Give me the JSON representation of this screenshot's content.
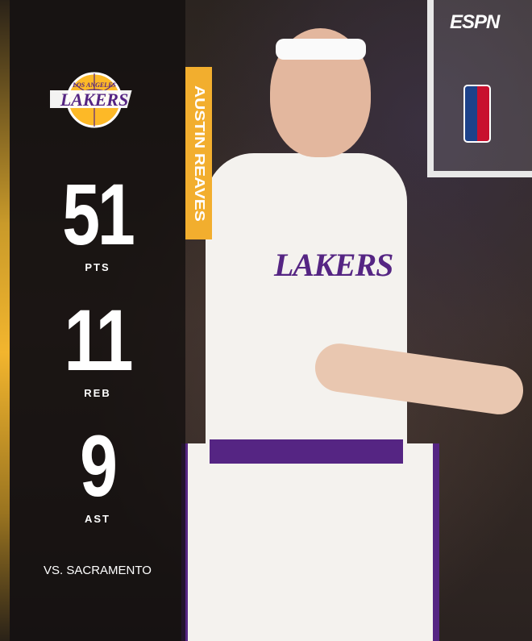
{
  "brand": "ESPN",
  "team_logo": {
    "text_top": "LOS ANGELES",
    "text_main": "LAKERS",
    "colors": {
      "purple": "#552583",
      "gold": "#fdb927"
    }
  },
  "player": {
    "name": "AUSTIN REAVES",
    "jersey_text": "LAKERS"
  },
  "stats": [
    {
      "value": "51",
      "label": "PTS"
    },
    {
      "value": "11",
      "label": "REB"
    },
    {
      "value": "9",
      "label": "AST"
    }
  ],
  "opponent": "VS. SACRAMENTO",
  "colors": {
    "accent": "#f2ae2e",
    "panel": "#0f0c0c"
  }
}
